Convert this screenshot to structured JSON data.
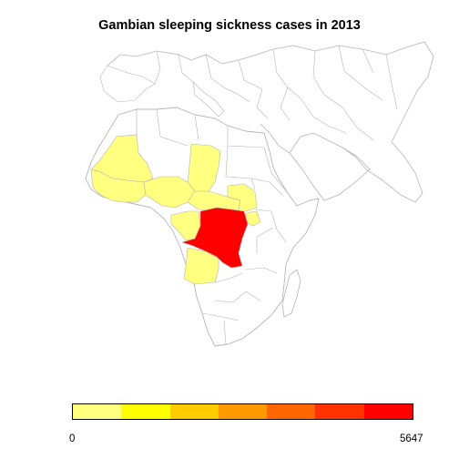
{
  "title": "Gambian sleeping sickness cases in 2013",
  "colors": {
    "land": "#ffffff",
    "border": "#b4b4b4",
    "low": "#ffff80",
    "high": "#ff0000"
  },
  "legend": {
    "min_label": "0",
    "max_label": "5647",
    "colors": [
      "#ffff80",
      "#ffff00",
      "#ffcc00",
      "#ff9900",
      "#ff6600",
      "#ff3300",
      "#ff0000"
    ]
  }
}
